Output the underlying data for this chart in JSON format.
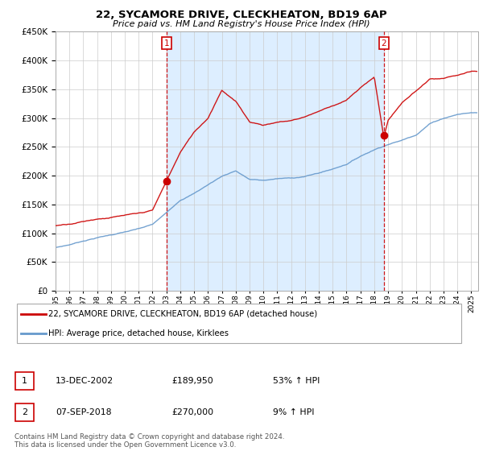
{
  "title": "22, SYCAMORE DRIVE, CLECKHEATON, BD19 6AP",
  "subtitle": "Price paid vs. HM Land Registry's House Price Index (HPI)",
  "ylim": [
    0,
    450000
  ],
  "xlim_start": 1995,
  "xlim_end": 2025.5,
  "transaction1": {
    "date": "13-DEC-2002",
    "price": 189950,
    "change": "53% ↑ HPI",
    "label": "1",
    "x": 2003.0
  },
  "transaction2": {
    "date": "07-SEP-2018",
    "price": 270000,
    "change": "9% ↑ HPI",
    "label": "2",
    "x": 2018.69
  },
  "vline_color": "#cc0000",
  "house_line_color": "#cc0000",
  "hpi_line_color": "#6699cc",
  "shade_color": "#ddeeff",
  "legend_label1": "22, SYCAMORE DRIVE, CLECKHEATON, BD19 6AP (detached house)",
  "legend_label2": "HPI: Average price, detached house, Kirklees",
  "table_row1": [
    "1",
    "13-DEC-2002",
    "£189,950",
    "53% ↑ HPI"
  ],
  "table_row2": [
    "2",
    "07-SEP-2018",
    "£270,000",
    "9% ↑ HPI"
  ],
  "footer": "Contains HM Land Registry data © Crown copyright and database right 2024.\nThis data is licensed under the Open Government Licence v3.0.",
  "background_color": "#ffffff",
  "grid_color": "#cccccc",
  "hpi_anchors_x": [
    1995,
    1996,
    1997,
    1998,
    1999,
    2000,
    2001,
    2002,
    2003,
    2004,
    2005,
    2006,
    2007,
    2008,
    2009,
    2010,
    2011,
    2012,
    2013,
    2014,
    2015,
    2016,
    2017,
    2018,
    2019,
    2020,
    2021,
    2022,
    2023,
    2024,
    2025
  ],
  "hpi_anchors_y": [
    75000,
    80000,
    87000,
    93000,
    98000,
    103000,
    108000,
    115000,
    135000,
    158000,
    170000,
    185000,
    200000,
    210000,
    195000,
    193000,
    196000,
    197000,
    200000,
    206000,
    213000,
    222000,
    236000,
    248000,
    258000,
    265000,
    275000,
    295000,
    305000,
    312000,
    315000
  ],
  "house_anchors_x": [
    1995,
    1996,
    1997,
    1998,
    1999,
    2000,
    2001,
    2002,
    2003.0,
    2004,
    2005,
    2006,
    2007,
    2008,
    2009,
    2010,
    2011,
    2012,
    2013,
    2014,
    2015,
    2016,
    2017,
    2018,
    2018.69,
    2019,
    2020,
    2021,
    2022,
    2023,
    2024,
    2025
  ],
  "house_anchors_y": [
    113000,
    117000,
    122000,
    127000,
    130000,
    133000,
    135000,
    140000,
    189950,
    240000,
    275000,
    300000,
    350000,
    330000,
    295000,
    290000,
    295000,
    298000,
    305000,
    315000,
    325000,
    335000,
    355000,
    375000,
    270000,
    300000,
    330000,
    350000,
    370000,
    370000,
    375000,
    380000
  ]
}
